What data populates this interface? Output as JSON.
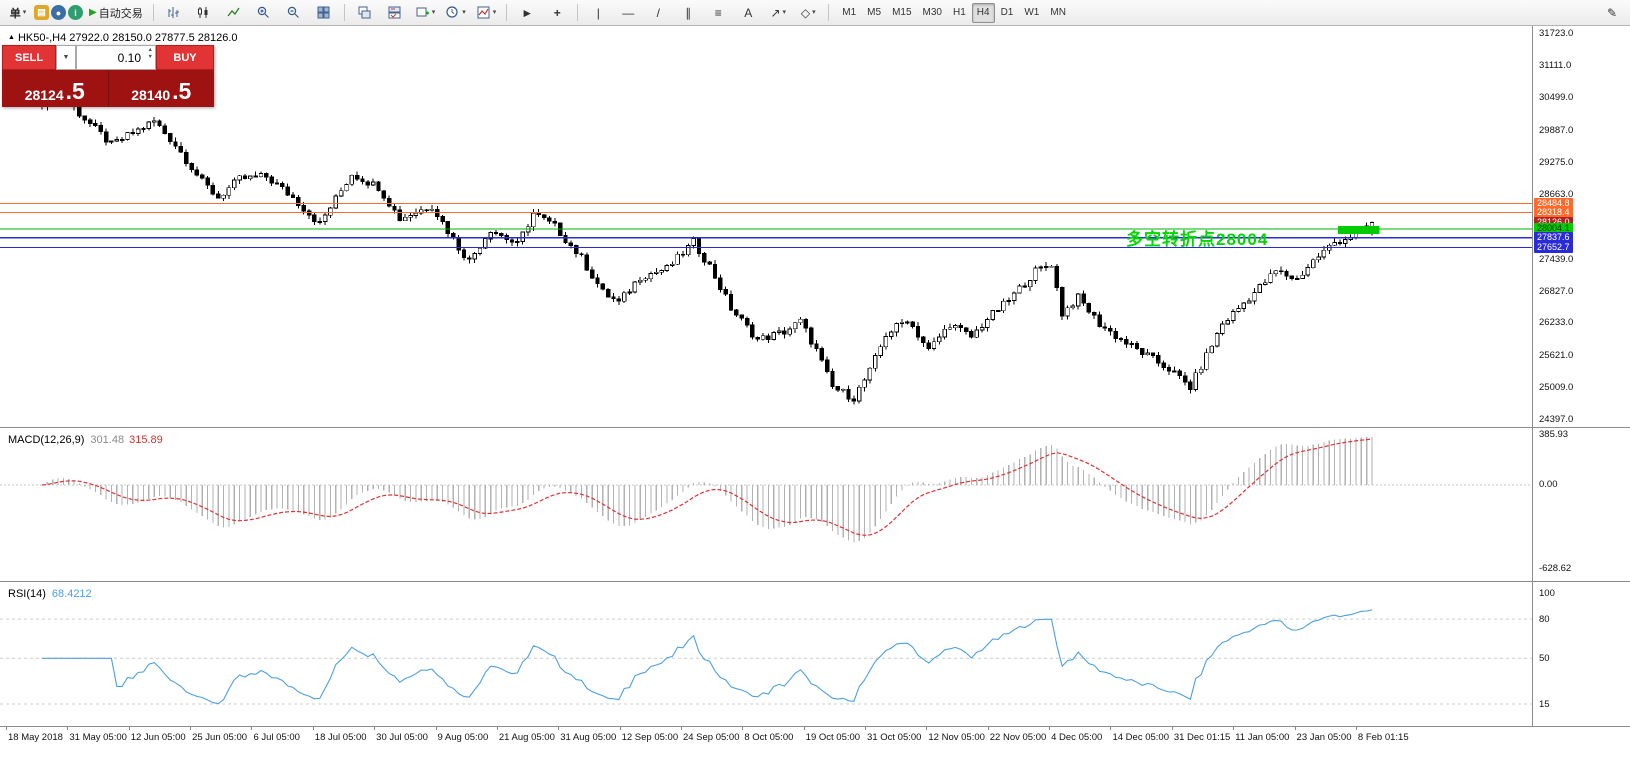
{
  "toolbar": {
    "new_order_label": "单",
    "autotrade_label": "自动交易",
    "timeframes": [
      "M1",
      "M5",
      "M15",
      "M30",
      "H1",
      "H4",
      "D1",
      "W1",
      "MN"
    ],
    "active_timeframe": "H4"
  },
  "icons": {
    "caret_down": "▾",
    "dropdown_arrow": "▼",
    "play": "▶",
    "symbol_marker": "▲",
    "spin_up": "▲",
    "spin_down": "▼",
    "cursor": "►",
    "crosshair": "+",
    "vline_tool": "|",
    "hline_tool": "—",
    "trendline_tool": "/",
    "channel_tool": "∥",
    "fibo_tool": "≡",
    "text_tool": "A",
    "arrow_tool": "↗",
    "shapes_tool": "◇",
    "pencil": "✎"
  },
  "chart_header": {
    "symbol_line": "HK50-,H4  27922.0 28150.0 27877.5 28126.0"
  },
  "trade_panel": {
    "sell_label": "SELL",
    "buy_label": "BUY",
    "volume": "0.10",
    "sell_price": {
      "main": "28124",
      "big": ".5"
    },
    "buy_price": {
      "main": "28140",
      "big": ".5"
    }
  },
  "annotation": {
    "text": "多空转折点28004",
    "color": "#00d800"
  },
  "price_axis": {
    "range_top": 31723.0,
    "range_bottom": 24397.0,
    "ticks": [
      31723.0,
      31111.0,
      30499.0,
      29887.0,
      29275.0,
      28663.0,
      27439.0,
      26827.0,
      26233.0,
      25621.0,
      25009.0,
      24397.0
    ]
  },
  "levels": [
    {
      "price": 28484.8,
      "label": "28484.8",
      "line_color": "#ff6a2a",
      "tag_bg": "#ff6a2a",
      "tag_fg": "#ffffff",
      "style": "solid"
    },
    {
      "price": 28318.4,
      "label": "28318.4",
      "line_color": "#ff6a2a",
      "tag_bg": "#ff6a2a",
      "tag_fg": "#ffffff",
      "style": "solid"
    },
    {
      "price": 28126.0,
      "label": "28126.0",
      "line_color": "none",
      "tag_bg": "#b22222",
      "tag_fg": "#ffffff",
      "style": "none"
    },
    {
      "price": 28004.1,
      "label": "28004.1",
      "line_color": "#00b000",
      "tag_bg": "#00cc00",
      "tag_fg": "#063306",
      "style": "solid"
    },
    {
      "price": 27837.6,
      "label": "27837.6",
      "line_color": "#2a2ad6",
      "tag_bg": "#2a2ad6",
      "tag_fg": "#ffffff",
      "style": "solid"
    },
    {
      "price": 27652.7,
      "label": "27652.7",
      "line_color": "#2a2ad6",
      "tag_bg": "#2a2ad6",
      "tag_fg": "#ffffff",
      "style": "solid"
    }
  ],
  "zone": {
    "start_index": 243,
    "end_index": 250,
    "price_top": 28060,
    "price_bottom": 27910,
    "color": "#00cc00"
  },
  "macd_panel": {
    "title": "MACD(12,26,9)",
    "value1": "301.48",
    "value2": "315.89",
    "scale": [
      "385.93",
      "0.00",
      "-628.62"
    ]
  },
  "rsi_panel": {
    "title": "RSI(14)",
    "value": "68.4212",
    "scale": [
      "100",
      "80",
      "50",
      "15"
    ]
  },
  "time_axis": [
    "18 May 2018",
    "31 May 05:00",
    "12 Jun 05:00",
    "25 Jun 05:00",
    "6 Jul 05:00",
    "18 Jul 05:00",
    "30 Jul 05:00",
    "9 Aug 05:00",
    "21 Aug 05:00",
    "31 Aug 05:00",
    "12 Sep 05:00",
    "24 Sep 05:00",
    "8 Oct 05:00",
    "19 Oct 05:00",
    "31 Oct 05:00",
    "12 Nov 05:00",
    "22 Nov 05:00",
    "4 Dec 05:00",
    "14 Dec 05:00",
    "31 Dec 01:15",
    "11 Jan 05:00",
    "23 Jan 05:00",
    "8 Feb 01:15"
  ],
  "chart_data": {
    "type": "candlestick",
    "symbol": "HK50-",
    "timeframe": "H4",
    "current_ohlc": {
      "open": 27922.0,
      "high": 28150.0,
      "low": 27877.5,
      "close": 28126.0
    },
    "candle_count": 250,
    "price_min": 24397.0,
    "price_max": 31723.0,
    "close_waypoints": [
      [
        0,
        30400
      ],
      [
        2,
        30750
      ],
      [
        7,
        30200
      ],
      [
        13,
        29600
      ],
      [
        21,
        30050
      ],
      [
        25,
        29600
      ],
      [
        30,
        28900
      ],
      [
        33,
        28600
      ],
      [
        37,
        28950
      ],
      [
        42,
        29000
      ],
      [
        47,
        28600
      ],
      [
        52,
        28100
      ],
      [
        58,
        29050
      ],
      [
        63,
        28800
      ],
      [
        67,
        28200
      ],
      [
        73,
        28450
      ],
      [
        78,
        27650
      ],
      [
        80,
        27400
      ],
      [
        84,
        28000
      ],
      [
        89,
        27700
      ],
      [
        92,
        28300
      ],
      [
        96,
        28050
      ],
      [
        101,
        27450
      ],
      [
        105,
        26800
      ],
      [
        108,
        26600
      ],
      [
        112,
        27100
      ],
      [
        117,
        27250
      ],
      [
        122,
        27750
      ],
      [
        125,
        27300
      ],
      [
        129,
        26500
      ],
      [
        134,
        25900
      ],
      [
        139,
        26050
      ],
      [
        142,
        26250
      ],
      [
        145,
        25700
      ],
      [
        148,
        25000
      ],
      [
        152,
        24800
      ],
      [
        155,
        25300
      ],
      [
        158,
        26000
      ],
      [
        162,
        26300
      ],
      [
        166,
        25700
      ],
      [
        170,
        26200
      ],
      [
        174,
        25950
      ],
      [
        177,
        26300
      ],
      [
        181,
        26650
      ],
      [
        186,
        27200
      ],
      [
        189,
        27350
      ],
      [
        191,
        26400
      ],
      [
        194,
        26700
      ],
      [
        198,
        26200
      ],
      [
        202,
        25900
      ],
      [
        206,
        25650
      ],
      [
        211,
        25350
      ],
      [
        215,
        25000
      ],
      [
        218,
        25600
      ],
      [
        221,
        26200
      ],
      [
        226,
        26700
      ],
      [
        231,
        27200
      ],
      [
        235,
        27050
      ],
      [
        238,
        27400
      ],
      [
        242,
        27750
      ],
      [
        246,
        27900
      ],
      [
        249,
        28126
      ]
    ],
    "indicators": {
      "macd": {
        "fast": 12,
        "slow": 26,
        "signal": 9,
        "current_macd": 301.48,
        "current_signal": 315.89,
        "scale_max": 385.93,
        "scale_min": -628.62
      },
      "rsi": {
        "period": 14,
        "current": 68.4212,
        "levels": [
          80,
          50,
          15
        ]
      }
    }
  }
}
